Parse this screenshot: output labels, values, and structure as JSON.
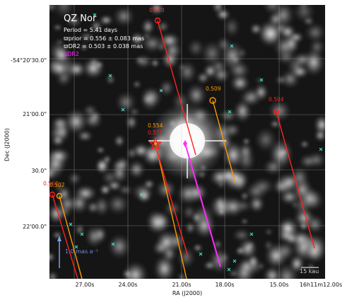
{
  "header": {
    "star_name": "QZ Nor",
    "period": "Period = 5.41 days",
    "parallax_prior": "ϖprior = 0.556 ± 0.083 mas",
    "parallax_dr2": "ϖDR2 = 0.503 ± 0.038 mas",
    "udr2_label": "μDR2"
  },
  "axes": {
    "xlabel": "RA (J2000)",
    "ylabel": "Dec (J2000)",
    "x_ticks": [
      "27.00s",
      "24.00s",
      "21.00s",
      "18.00s",
      "15.00s",
      "16h11m12.00s"
    ],
    "y_ticks": [
      "-54°20'30.0\"",
      "21'00.0\"",
      "30.0\"",
      "22'00.0\""
    ]
  },
  "annotations": {
    "parallax_labels": [
      "0.610",
      "0.509",
      "0.504",
      "0.554",
      "0.5??",
      "0.567",
      "0.502"
    ],
    "scale_label": "15 kau",
    "pm_label": "1.0 mas a⁻¹"
  },
  "colors": {
    "red": "#ff2020",
    "orange": "#ff9a00",
    "magenta": "#ff2bff",
    "cyan": "#3fe0d0",
    "blue": "#7a9ee8"
  }
}
